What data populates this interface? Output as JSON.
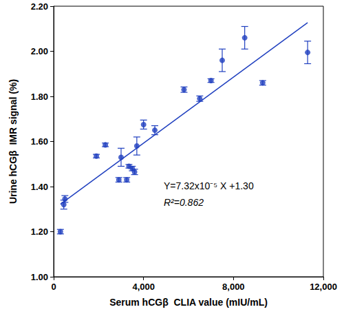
{
  "chart_data": {
    "type": "scatter",
    "x_label": "Serum hCGβ  CLIA value (mIU/mL)",
    "y_label": "Urine hCGβ  IMR signal (%)",
    "x": [
      300,
      450,
      500,
      1900,
      2300,
      2900,
      3000,
      3250,
      3350,
      3500,
      3600,
      3700,
      4000,
      4500,
      5800,
      6500,
      7000,
      7500,
      8500,
      9300,
      11300
    ],
    "values": [
      1.2,
      1.32,
      1.345,
      1.535,
      1.585,
      1.43,
      1.53,
      1.43,
      1.49,
      1.48,
      1.465,
      1.58,
      1.675,
      1.65,
      1.83,
      1.79,
      1.87,
      1.96,
      2.06,
      1.86,
      1.995
    ],
    "errors": [
      0.01,
      0.02,
      0.015,
      0.008,
      0.008,
      0.01,
      0.04,
      0.01,
      0.008,
      0.01,
      0.012,
      0.04,
      0.02,
      0.02,
      0.012,
      0.012,
      0.008,
      0.05,
      0.05,
      0.01,
      0.05
    ],
    "color": "#1f3fbf",
    "marker": "circle",
    "xlim": [
      0,
      12000
    ],
    "ylim": [
      1.0,
      2.2
    ],
    "xticks": [
      0,
      {
        "value": 4000,
        "label": "4,000"
      },
      {
        "value": 8000,
        "label": "8,000"
      },
      {
        "value": 12000,
        "label": "12,000"
      }
    ],
    "yticks": [
      {
        "value": 1.0,
        "label": "1.00"
      },
      {
        "value": 1.2,
        "label": "1.20"
      },
      {
        "value": 1.4,
        "label": "1.40"
      },
      {
        "value": 1.6,
        "label": "1.60"
      },
      {
        "value": 1.8,
        "label": "1.80"
      },
      {
        "value": 2.0,
        "label": "2.00"
      },
      {
        "value": 2.2,
        "label": "2.20"
      }
    ],
    "grid": false,
    "fit_line": {
      "x": [
        300,
        11300
      ],
      "values": [
        1.322,
        2.127
      ]
    },
    "annotations": [
      "Y=7.32x10⁻⁵ X +1.30",
      "R²=0.862"
    ]
  }
}
